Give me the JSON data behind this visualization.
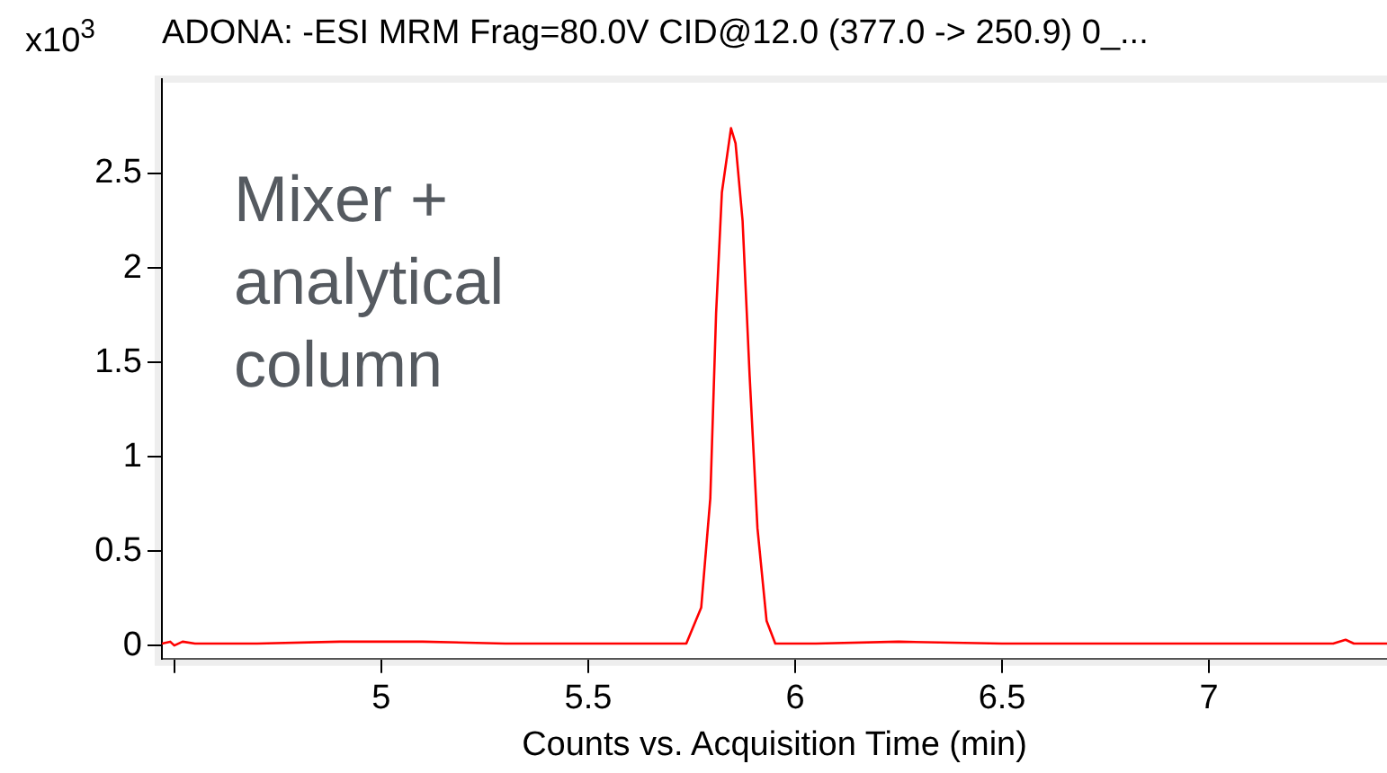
{
  "chart_data": {
    "type": "line",
    "title": "ADONA: -ESI MRM Frag=80.0V CID@12.0 (377.0 -> 250.9) 0_...",
    "ylabel": "x10$^{3}$",
    "xlabel": "Counts vs. Acquisition Time (min)",
    "annotations": [
      "Mixer + analytical column"
    ],
    "series": [
      {
        "color": "#ff0000",
        "x": [
          4.47,
          4.49,
          4.5,
          4.52,
          4.55,
          4.7,
          4.9,
          5.1,
          5.3,
          5.5,
          5.65,
          5.737,
          5.773,
          5.795,
          5.809,
          5.823,
          5.845,
          5.856,
          5.873,
          5.89,
          5.909,
          5.931,
          5.952,
          6.05,
          6.25,
          6.5,
          6.8,
          7.1,
          7.3,
          7.33,
          7.35,
          7.43
        ],
        "values": [
          0.01,
          0.02,
          0.0,
          0.02,
          0.01,
          0.01,
          0.02,
          0.02,
          0.01,
          0.01,
          0.01,
          0.01,
          0.2,
          0.78,
          1.76,
          2.4,
          2.74,
          2.66,
          2.25,
          1.43,
          0.62,
          0.13,
          0.01,
          0.01,
          0.02,
          0.01,
          0.01,
          0.01,
          0.01,
          0.03,
          0.01,
          0.01
        ]
      }
    ],
    "xlim": [
      4.47,
      7.43
    ],
    "xticks": [
      {
        "value": 4.5,
        "label": null
      },
      5,
      5.5,
      6,
      6.5,
      7
    ],
    "ylim": [
      -0.07,
      3.0
    ],
    "yticks": [
      0,
      0.5,
      1,
      1.5,
      2,
      2.5
    ],
    "grid": false,
    "legend": false,
    "marker": "none",
    "line_style": "solid"
  }
}
